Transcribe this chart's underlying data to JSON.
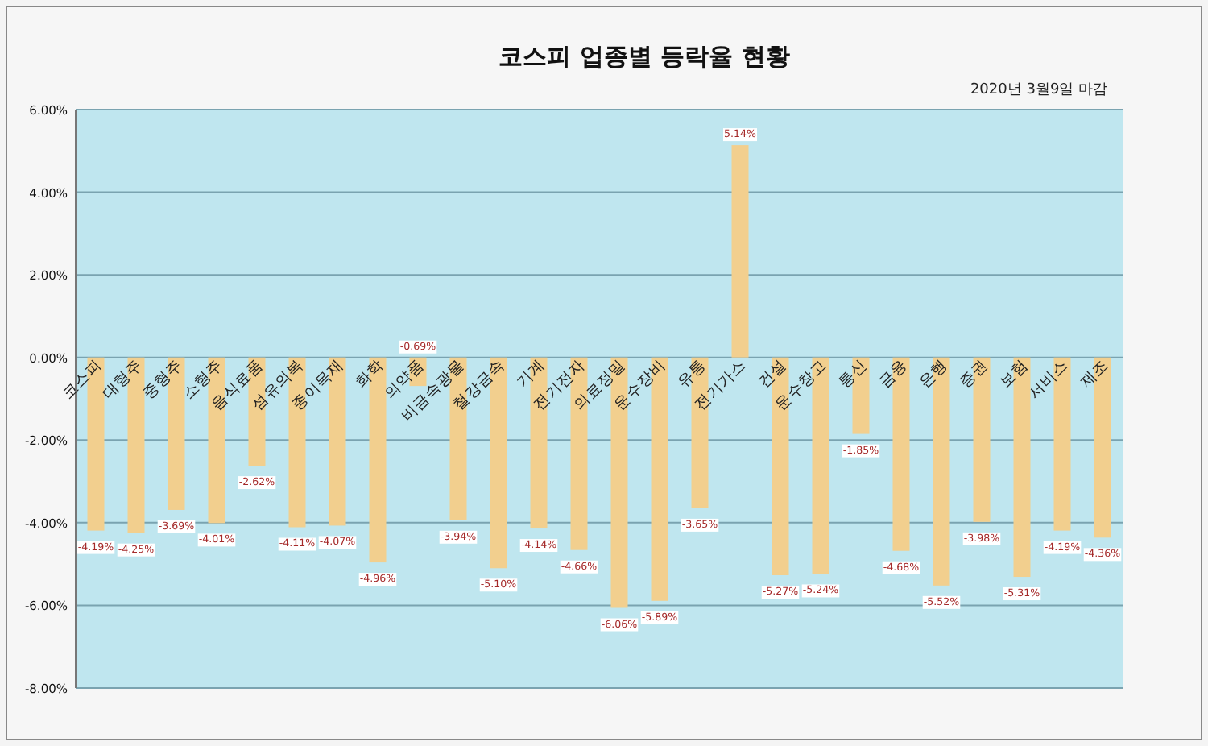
{
  "chart_data": {
    "type": "bar",
    "title": "코스피 업종별 등락율 현황",
    "subtitle": "2020년 3월9일 마감",
    "categories": [
      "코스피",
      "대형주",
      "중형주",
      "소형주",
      "음식료품",
      "섬유의복",
      "종이목재",
      "화학",
      "의약품",
      "비금속광물",
      "철강금속",
      "기계",
      "전기전자",
      "의료정밀",
      "운수장비",
      "유통",
      "전기가스",
      "건설",
      "운수창고",
      "통신",
      "금융",
      "은행",
      "증권",
      "보험",
      "서비스",
      "제조"
    ],
    "values": [
      -4.19,
      -4.25,
      -3.69,
      -4.01,
      -2.62,
      -4.11,
      -4.07,
      -4.96,
      -0.69,
      -3.94,
      -5.1,
      -4.14,
      -4.66,
      -6.06,
      -5.89,
      -3.65,
      5.14,
      -5.27,
      -5.24,
      -1.85,
      -4.68,
      -5.52,
      -3.98,
      -5.31,
      -4.19,
      -4.36
    ],
    "value_labels": [
      "-4.19%",
      "-4.25%",
      "-3.69%",
      "-4.01%",
      "-2.62%",
      "-4.11%",
      "-4.07%",
      "-4.96%",
      "-0.69%",
      "-3.94%",
      "-5.10%",
      "-4.14%",
      "-4.66%",
      "-6.06%",
      "-5.89%",
      "-3.65%",
      "5.14%",
      "-5.27%",
      "-5.24%",
      "-1.85%",
      "-4.68%",
      "-5.52%",
      "-3.98%",
      "-5.31%",
      "-4.19%",
      "-4.36%"
    ],
    "color": "#f2cf8e",
    "ylim": [
      -8,
      6
    ],
    "yticks": [
      {
        "value": -8,
        "label": "-8.00%"
      },
      {
        "value": -6,
        "label": "-6.00%"
      },
      {
        "value": -4,
        "label": "-4.00%"
      },
      {
        "value": -2,
        "label": "-2.00%"
      },
      {
        "value": 0,
        "label": "0.00%"
      },
      {
        "value": 2,
        "label": "2.00%"
      },
      {
        "value": 4,
        "label": "4.00%"
      },
      {
        "value": 6,
        "label": "6.00%"
      }
    ],
    "grid": "y",
    "legend": false
  }
}
